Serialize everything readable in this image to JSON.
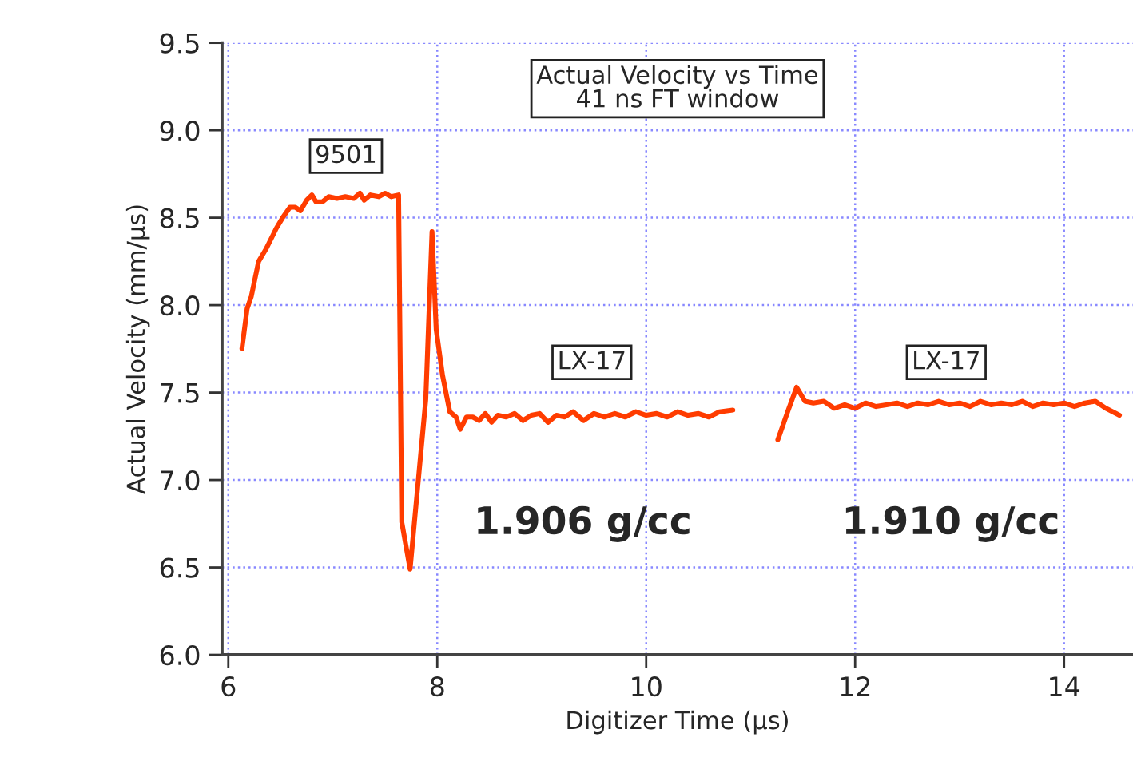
{
  "chart_data": {
    "type": "line",
    "title": "Actual Velocity vs Time\n41 ns FT window",
    "xlabel": "Digitizer Time (μs)",
    "ylabel": "Actual Velocity (mm/μs)",
    "xlim": [
      5.94,
      14.66
    ],
    "ylim": [
      6.0,
      9.5
    ],
    "xticks": [
      6,
      8,
      10,
      12,
      14
    ],
    "yticks": [
      {
        "value": 6.0,
        "label": "6.0"
      },
      {
        "value": 6.5,
        "label": "6.5"
      },
      {
        "value": 7.0,
        "label": "7.0"
      },
      {
        "value": 7.5,
        "label": "7.5"
      },
      {
        "value": 8.0,
        "label": "8.0"
      },
      {
        "value": 8.5,
        "label": "8.5"
      },
      {
        "value": 9.0,
        "label": "9.0"
      },
      {
        "value": 9.5,
        "label": "9.5"
      }
    ],
    "grid": true,
    "marker": "none",
    "line_style": "solid",
    "series": [
      {
        "color": "#ff3c00",
        "x": [
          6.13,
          6.18,
          6.22,
          6.29,
          6.36,
          6.46,
          6.52,
          6.59,
          6.64,
          6.69,
          6.75,
          6.8,
          6.84,
          6.9,
          6.96,
          7.04,
          7.12,
          7.2,
          7.26,
          7.3,
          7.36,
          7.44,
          7.5,
          7.56,
          7.63,
          7.66,
          7.74,
          7.89,
          7.95,
          7.99,
          8.05,
          8.12,
          8.18,
          8.22,
          8.28,
          8.34,
          8.4,
          8.46,
          8.52,
          8.58,
          8.66,
          8.74,
          8.82,
          8.9,
          8.98,
          9.06,
          9.14,
          9.22,
          9.3,
          9.4,
          9.5,
          9.6,
          9.7,
          9.8,
          9.9,
          10.0,
          10.1,
          10.2,
          10.3,
          10.4,
          10.5,
          10.6,
          10.7,
          10.83
        ],
        "values": [
          7.75,
          7.98,
          8.05,
          8.25,
          8.32,
          8.44,
          8.5,
          8.56,
          8.56,
          8.54,
          8.6,
          8.63,
          8.59,
          8.59,
          8.62,
          8.61,
          8.62,
          8.61,
          8.64,
          8.6,
          8.63,
          8.62,
          8.64,
          8.62,
          8.63,
          6.76,
          6.49,
          7.46,
          8.42,
          7.86,
          7.6,
          7.39,
          7.36,
          7.29,
          7.36,
          7.36,
          7.34,
          7.38,
          7.33,
          7.37,
          7.36,
          7.38,
          7.34,
          7.37,
          7.38,
          7.33,
          7.37,
          7.36,
          7.39,
          7.34,
          7.38,
          7.36,
          7.38,
          7.36,
          7.39,
          7.37,
          7.38,
          7.36,
          7.39,
          7.37,
          7.38,
          7.36,
          7.39,
          7.4
        ]
      },
      {
        "color": "#ff3c00",
        "x": [
          11.26,
          11.36,
          11.44,
          11.52,
          11.6,
          11.7,
          11.8,
          11.9,
          12.0,
          12.1,
          12.2,
          12.3,
          12.4,
          12.5,
          12.6,
          12.7,
          12.8,
          12.9,
          13.0,
          13.1,
          13.2,
          13.3,
          13.4,
          13.5,
          13.6,
          13.7,
          13.8,
          13.9,
          14.0,
          14.1,
          14.2,
          14.3,
          14.4,
          14.53
        ],
        "values": [
          7.23,
          7.4,
          7.53,
          7.45,
          7.44,
          7.45,
          7.41,
          7.43,
          7.41,
          7.44,
          7.42,
          7.43,
          7.44,
          7.42,
          7.44,
          7.43,
          7.45,
          7.43,
          7.44,
          7.42,
          7.45,
          7.43,
          7.44,
          7.43,
          7.45,
          7.42,
          7.44,
          7.43,
          7.44,
          7.42,
          7.44,
          7.45,
          7.41,
          7.37
        ]
      }
    ],
    "annotations": [
      "9501",
      "LX-17",
      "LX-17",
      "1.906 g/cc",
      "1.910 g/cc"
    ]
  }
}
